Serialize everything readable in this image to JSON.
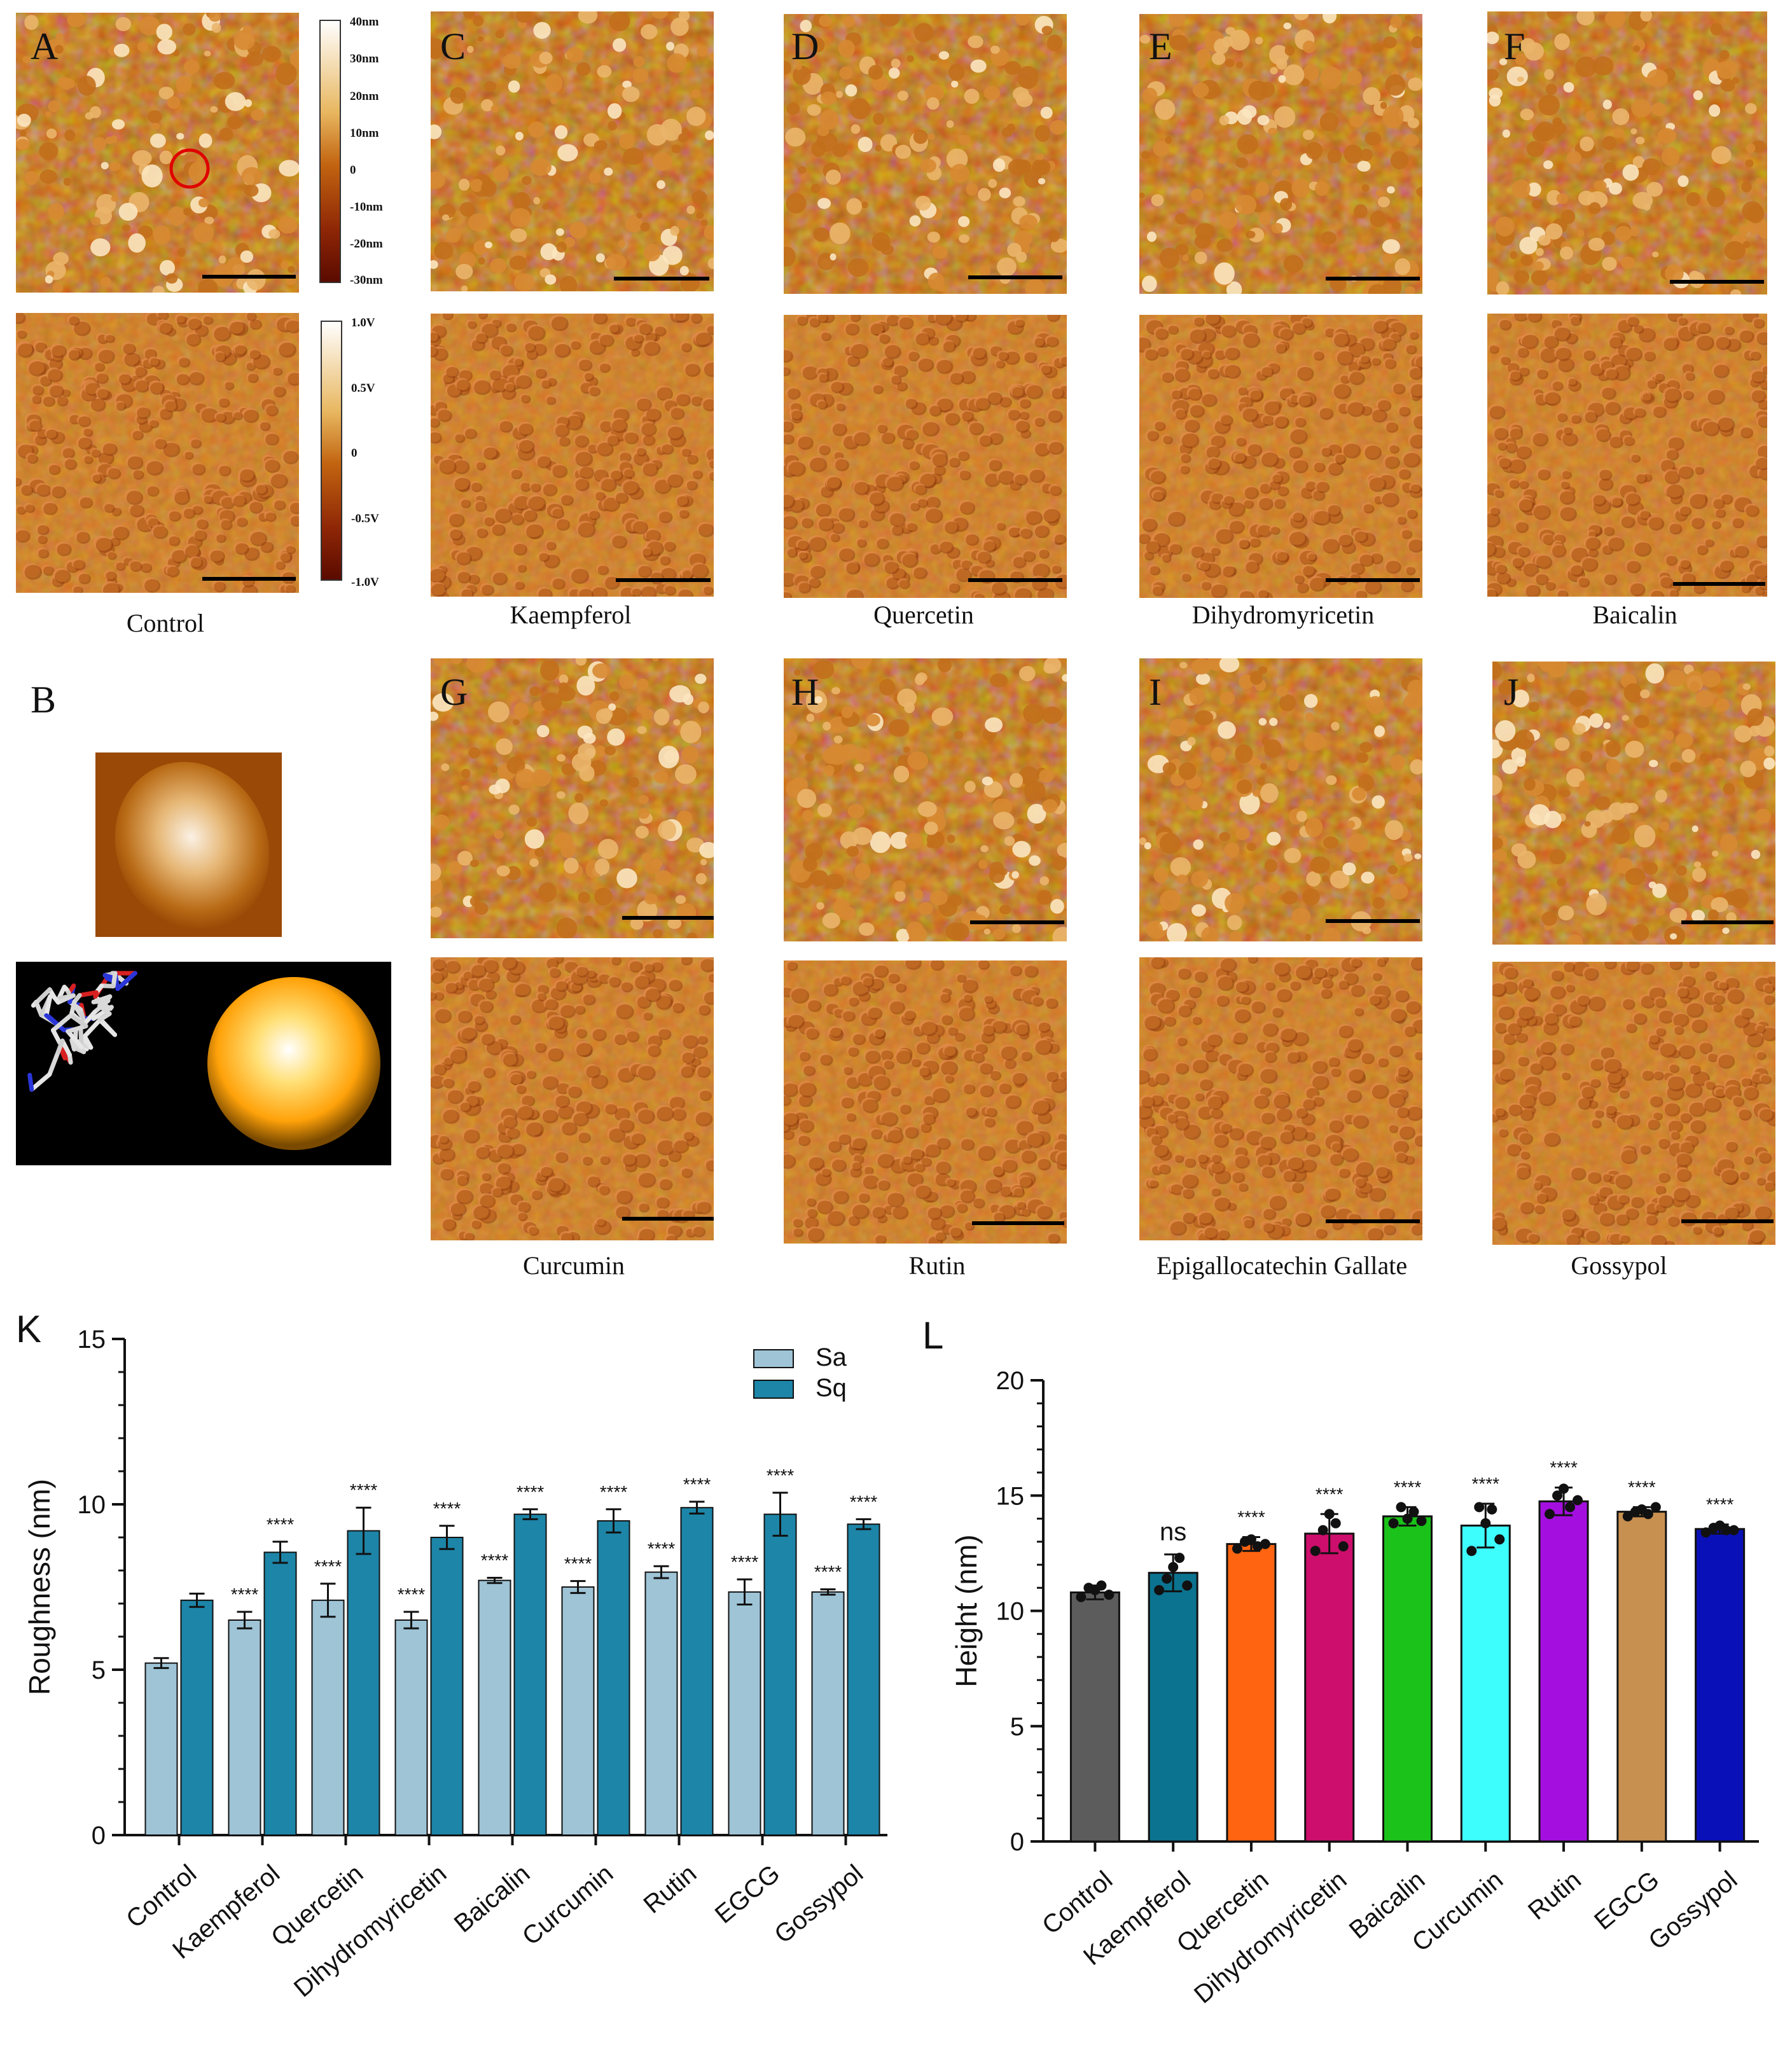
{
  "panel_letters": {
    "A": "A",
    "B": "B",
    "C": "C",
    "D": "D",
    "E": "E",
    "F": "F",
    "G": "G",
    "H": "H",
    "I": "I",
    "J": "J",
    "K": "K",
    "L": "L"
  },
  "captions": [
    "Control",
    "Kaempferol",
    "Quercetin",
    "Dihydromyricetin",
    "Baicalin",
    "Curcumin",
    "Rutin",
    "Epigallocatechin Gallate",
    "Gossypol"
  ],
  "height_colorbar": [
    "40nm",
    "30nm",
    "20nm",
    "10nm",
    "0",
    "-10nm",
    "-20nm",
    "-30nm"
  ],
  "voltage_colorbar": [
    "1.0V",
    "0.5V",
    "0",
    "-0.5V",
    "-1.0V"
  ],
  "colors": {
    "afm_dark": "#8a2a05",
    "afm_mid": "#c2600a",
    "afm_light": "#f6dcae",
    "sa": "#9ec4d6",
    "sq": "#1d85a7"
  },
  "chart_data": [
    {
      "type": "bar",
      "panel": "K",
      "categories": [
        "Control",
        "Kaempferol",
        "Quercetin",
        "Dihydromyricetin",
        "Baicalin",
        "Curcumin",
        "Rutin",
        "EGCG",
        "Gossypol"
      ],
      "series": [
        {
          "name": "Sa",
          "color": "#9ec4d6",
          "values": [
            5.2,
            6.5,
            7.1,
            6.5,
            7.7,
            7.5,
            7.95,
            7.35,
            7.35
          ],
          "errors": [
            0.15,
            0.25,
            0.5,
            0.25,
            0.08,
            0.18,
            0.18,
            0.38,
            0.08
          ],
          "significance": [
            "",
            "****",
            "****",
            "****",
            "****",
            "****",
            "****",
            "****",
            "****"
          ]
        },
        {
          "name": "Sq",
          "color": "#1d85a7",
          "values": [
            7.1,
            8.55,
            9.2,
            9.0,
            9.7,
            9.5,
            9.9,
            9.7,
            9.4
          ],
          "errors": [
            0.2,
            0.32,
            0.7,
            0.35,
            0.15,
            0.35,
            0.18,
            0.65,
            0.15
          ],
          "significance": [
            "",
            "****",
            "****",
            "****",
            "****",
            "****",
            "****",
            "****",
            "****"
          ]
        }
      ],
      "ylabel": "Roughness (nm)",
      "xlabel": "",
      "ylim": [
        0,
        15
      ],
      "yticks": [
        0,
        5,
        10,
        15
      ],
      "legend": "top-right"
    },
    {
      "type": "bar",
      "panel": "L",
      "categories": [
        "Control",
        "Kaempferol",
        "Quercetin",
        "Dihydromyricetin",
        "Baicalin",
        "Curcumin",
        "Rutin",
        "EGCG",
        "Gossypol"
      ],
      "values": [
        10.8,
        11.65,
        12.9,
        13.35,
        14.1,
        13.7,
        14.75,
        14.3,
        13.55
      ],
      "errors": [
        0.3,
        0.8,
        0.3,
        0.85,
        0.4,
        0.95,
        0.6,
        0.2,
        0.2
      ],
      "colors": [
        "#5c5c5c",
        "#0b7390",
        "#ff6410",
        "#cd0e6c",
        "#1ac219",
        "#3dfdfd",
        "#a40fe0",
        "#c89050",
        "#0a10b8"
      ],
      "points": [
        [
          10.6,
          11.0,
          10.9,
          11.1,
          10.7
        ],
        [
          10.9,
          11.4,
          11.9,
          12.3,
          11.1
        ],
        [
          12.7,
          13.0,
          13.1,
          12.8,
          12.9
        ],
        [
          12.6,
          13.5,
          14.2,
          13.8,
          12.8
        ],
        [
          13.8,
          14.5,
          14.0,
          14.3,
          13.9
        ],
        [
          12.6,
          14.5,
          13.8,
          14.4,
          13.1
        ],
        [
          14.2,
          15.0,
          15.3,
          14.5,
          14.8
        ],
        [
          14.1,
          14.3,
          14.4,
          14.2,
          14.5
        ],
        [
          13.4,
          13.6,
          13.7,
          13.5,
          13.5
        ]
      ],
      "significance": [
        "",
        "ns",
        "****",
        "****",
        "****",
        "****",
        "****",
        "****",
        "****"
      ],
      "ylabel": "Height (nm)",
      "xlabel": "",
      "ylim": [
        0,
        20
      ],
      "yticks": [
        0,
        5,
        10,
        15,
        20
      ]
    }
  ]
}
